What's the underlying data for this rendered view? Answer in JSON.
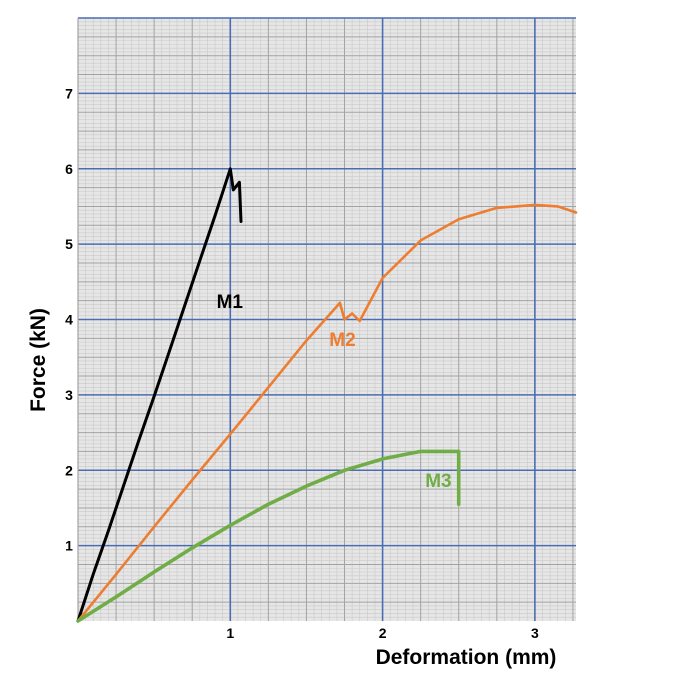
{
  "chart_data": {
    "type": "line",
    "xlabel": "Deformation (mm)",
    "ylabel": "Force (kN)",
    "xlim": [
      0,
      3.27
    ],
    "ylim": [
      0,
      8
    ],
    "x_ticks": [
      1,
      2,
      3
    ],
    "y_ticks": [
      1,
      2,
      3,
      4,
      5,
      6,
      7
    ],
    "grid": true,
    "legend": "inline labels",
    "colors": {
      "background": "#e6e6e6",
      "grid_major": "#4a6cb3",
      "grid_minor": "#a3a3a3",
      "grid_fine": "#c9c9c9"
    },
    "series": [
      {
        "name": "M1",
        "color": "#000000",
        "label_at": [
          0.91,
          4.15
        ],
        "x": [
          0,
          0.1,
          0.2,
          0.3,
          0.4,
          0.5,
          0.6,
          0.7,
          0.8,
          0.9,
          1.0,
          1.02,
          1.06,
          1.07
        ],
        "y": [
          0,
          0.62,
          1.2,
          1.8,
          2.4,
          2.98,
          3.58,
          4.18,
          4.78,
          5.38,
          6.0,
          5.72,
          5.82,
          5.3
        ]
      },
      {
        "name": "M2",
        "color": "#ed7d31",
        "label_at": [
          1.65,
          3.65
        ],
        "x": [
          0,
          0.25,
          0.5,
          0.75,
          1.0,
          1.25,
          1.5,
          1.72,
          1.75,
          1.8,
          1.85,
          2.0,
          2.25,
          2.5,
          2.75,
          3.0,
          3.15,
          3.27
        ],
        "y": [
          0,
          0.62,
          1.25,
          1.87,
          2.48,
          3.1,
          3.72,
          4.22,
          4.0,
          4.08,
          3.98,
          4.55,
          5.05,
          5.33,
          5.48,
          5.52,
          5.5,
          5.42
        ]
      },
      {
        "name": "M3",
        "color": "#70ad47",
        "label_at": [
          2.28,
          1.78
        ],
        "x": [
          0,
          0.25,
          0.5,
          0.75,
          1.0,
          1.25,
          1.5,
          1.75,
          2.0,
          2.25,
          2.5,
          2.5
        ],
        "y": [
          0,
          0.32,
          0.65,
          0.97,
          1.27,
          1.55,
          1.79,
          2.0,
          2.15,
          2.25,
          2.25,
          1.55
        ]
      }
    ]
  }
}
